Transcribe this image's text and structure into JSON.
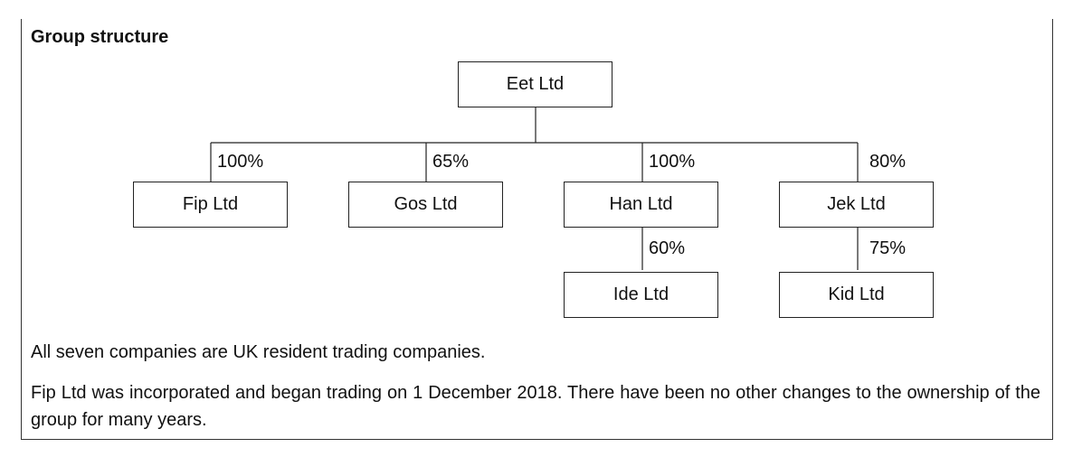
{
  "title": "Group structure",
  "companies": {
    "eet": "Eet Ltd",
    "fip": "Fip Ltd",
    "gos": "Gos Ltd",
    "han": "Han Ltd",
    "jek": "Jek Ltd",
    "ide": "Ide Ltd",
    "kid": "Kid Ltd"
  },
  "holdings": {
    "fip": "100%",
    "gos": "65%",
    "han": "100%",
    "jek": "80%",
    "ide": "60%",
    "kid": "75%"
  },
  "notes": [
    "All seven companies are UK resident trading companies.",
    "Fip Ltd was incorporated and began trading on 1 December 2018. There have been no other changes to the ownership of the group for many years."
  ]
}
